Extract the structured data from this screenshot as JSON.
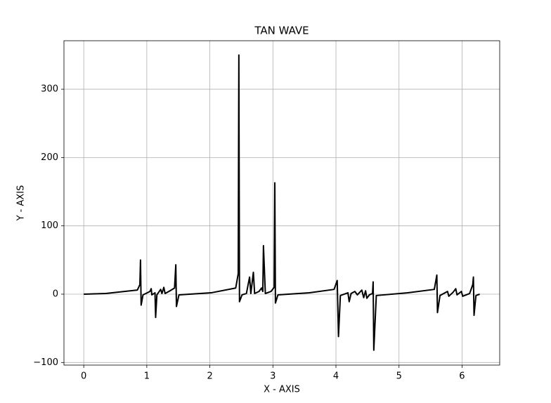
{
  "chart_data": {
    "type": "line",
    "title": "TAN WAVE",
    "x_label": "X - AXIS",
    "y_label": "Y - AXIS",
    "x": [
      0,
      0.35,
      0.85,
      0.89,
      0.9,
      0.91,
      0.94,
      1.05,
      1.07,
      1.08,
      1.13,
      1.14,
      1.16,
      1.22,
      1.24,
      1.27,
      1.29,
      1.35,
      1.44,
      1.46,
      1.47,
      1.51,
      2.02,
      2.41,
      2.45,
      2.46,
      2.47,
      2.51,
      2.58,
      2.63,
      2.65,
      2.69,
      2.71,
      2.78,
      2.82,
      2.84,
      2.85,
      2.88,
      2.97,
      3.02,
      3.03,
      3.04,
      3.08,
      3.58,
      3.97,
      4.02,
      4.04,
      4.07,
      4.19,
      4.21,
      4.24,
      4.3,
      4.34,
      4.41,
      4.44,
      4.47,
      4.49,
      4.53,
      4.58,
      4.59,
      4.6,
      4.64,
      5.14,
      5.56,
      5.6,
      5.61,
      5.65,
      5.77,
      5.79,
      5.86,
      5.9,
      5.92,
      5.99,
      6.01,
      6.12,
      6.17,
      6.18,
      6.19,
      6.22,
      6.28
    ],
    "values": [
      0,
      1,
      6,
      14,
      50,
      -16,
      -1,
      4,
      8,
      -1,
      2,
      -34,
      -1,
      7,
      1,
      10,
      1,
      4,
      9,
      43,
      -18,
      -1,
      2,
      9,
      30,
      350,
      -11,
      -1,
      1,
      25,
      1,
      32,
      1,
      4,
      9,
      4,
      71,
      1,
      4,
      10,
      163,
      -13,
      -1,
      2,
      7,
      20,
      -62,
      -2,
      2,
      -11,
      1,
      4,
      -1,
      6,
      -5,
      5,
      -6,
      -1,
      1,
      18,
      -82,
      -2,
      2,
      7,
      28,
      -27,
      -2,
      4,
      -3,
      3,
      8,
      -1,
      4,
      -3,
      1,
      14,
      25,
      -31,
      -2,
      0
    ],
    "color": "#000000",
    "xlim": [
      -0.314,
      6.597
    ],
    "xticks": [
      0,
      1,
      2,
      3,
      4,
      5,
      6
    ],
    "ylim": [
      -103.8,
      371
    ],
    "yticks": [
      {
        "value": -100,
        "label": "−100"
      },
      0,
      100,
      200,
      300
    ],
    "grid": true
  }
}
